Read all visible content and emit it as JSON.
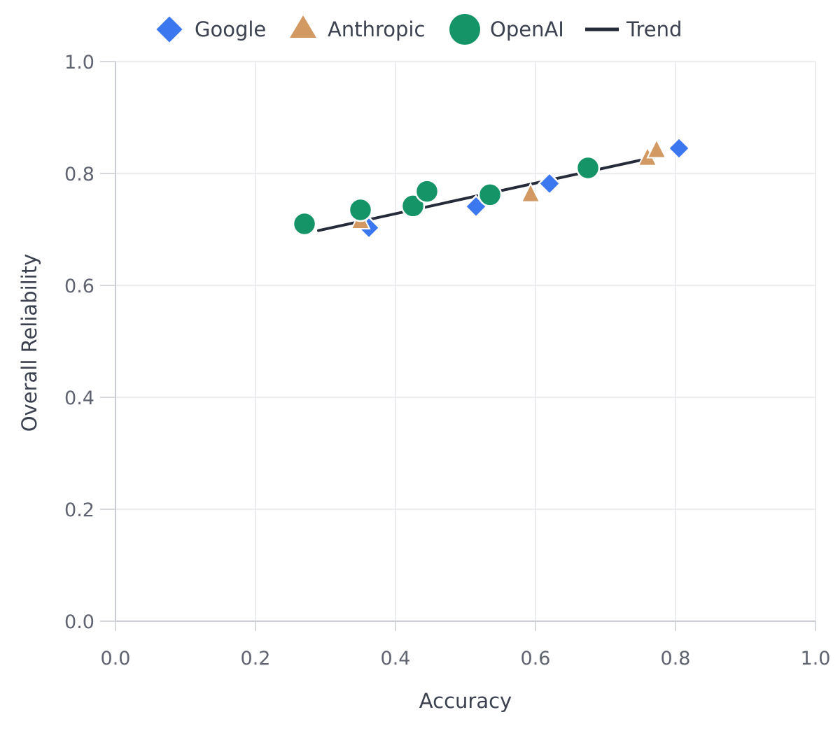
{
  "chart_data": {
    "type": "scatter",
    "title": "",
    "xlabel": "Accuracy",
    "ylabel": "Overall Reliability",
    "xlim": [
      0.0,
      1.0
    ],
    "ylim": [
      0.0,
      1.0
    ],
    "x_ticks": [
      "0.0",
      "0.2",
      "0.4",
      "0.6",
      "0.8",
      "1.0"
    ],
    "y_ticks": [
      "0.0",
      "0.2",
      "0.4",
      "0.6",
      "0.8",
      "1.0"
    ],
    "grid": true,
    "legend_position": "top",
    "colors": {
      "google": "#3b78f0",
      "anthropic": "#d29a62",
      "openai": "#149467",
      "trend": "#262b3a",
      "grid": "#e6e7eb",
      "axis": "#c9ccd2"
    },
    "series": [
      {
        "name": "Google",
        "marker": "diamond",
        "color": "#3b78f0",
        "points": [
          {
            "x": 0.362,
            "y": 0.703
          },
          {
            "x": 0.515,
            "y": 0.741
          },
          {
            "x": 0.62,
            "y": 0.782
          },
          {
            "x": 0.805,
            "y": 0.845
          }
        ]
      },
      {
        "name": "Anthropic",
        "marker": "triangle",
        "color": "#d29a62",
        "points": [
          {
            "x": 0.35,
            "y": 0.715
          },
          {
            "x": 0.593,
            "y": 0.763
          },
          {
            "x": 0.76,
            "y": 0.828
          },
          {
            "x": 0.773,
            "y": 0.842
          }
        ]
      },
      {
        "name": "OpenAI",
        "marker": "circle",
        "color": "#149467",
        "points": [
          {
            "x": 0.27,
            "y": 0.71
          },
          {
            "x": 0.35,
            "y": 0.735
          },
          {
            "x": 0.425,
            "y": 0.742
          },
          {
            "x": 0.445,
            "y": 0.768
          },
          {
            "x": 0.535,
            "y": 0.762
          },
          {
            "x": 0.675,
            "y": 0.81
          }
        ]
      }
    ],
    "trend": {
      "name": "Trend",
      "x": [
        0.29,
        0.78
      ],
      "y": [
        0.698,
        0.832
      ]
    }
  }
}
